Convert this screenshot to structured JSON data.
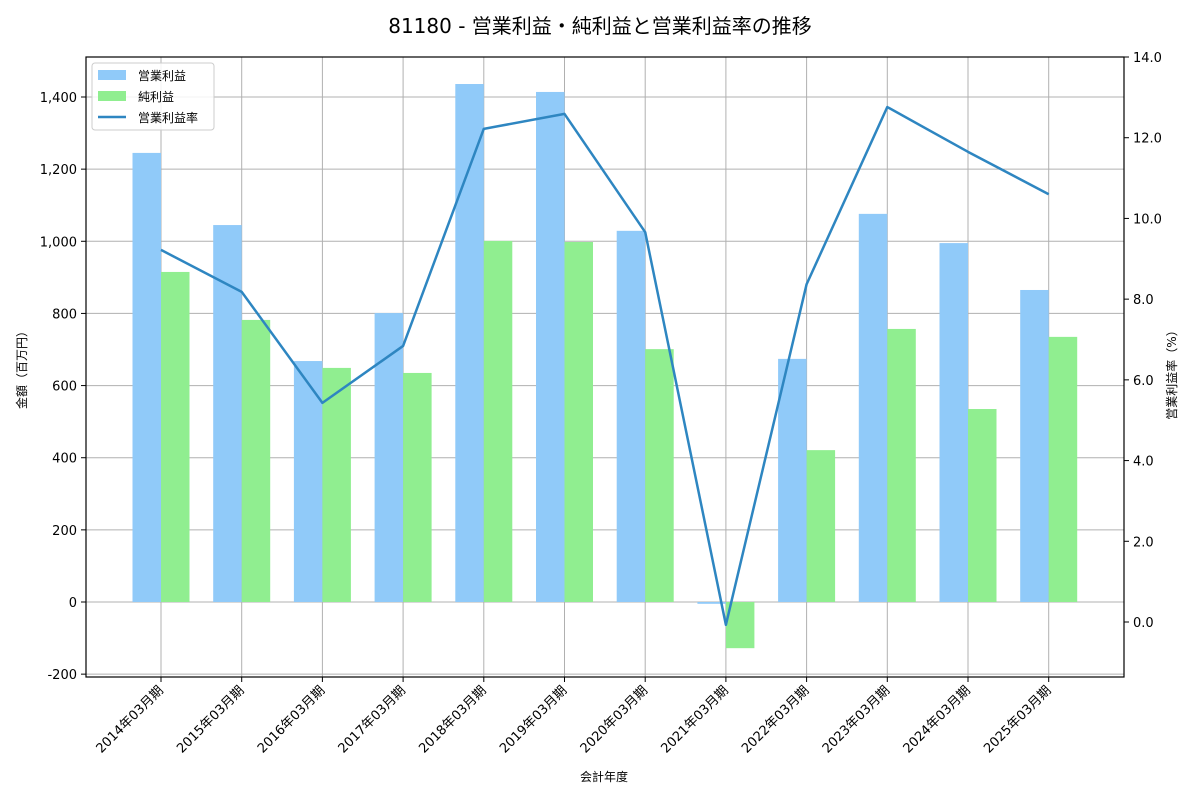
{
  "title": "81180 - 営業利益・純利益と営業利益率の推移",
  "chart_data": {
    "type": "bar+line",
    "title": "81180 - 営業利益・純利益と営業利益率の推移",
    "xlabel": "会計年度",
    "ylabel": "金額（百万円）",
    "y2label": "営業利益率（%）",
    "categories": [
      "2014年03月期",
      "2015年03月期",
      "2016年03月期",
      "2017年03月期",
      "2018年03月期",
      "2019年03月期",
      "2020年03月期",
      "2021年03月期",
      "2022年03月期",
      "2023年03月期",
      "2024年03月期",
      "2025年03月期"
    ],
    "series": [
      {
        "name": "営業利益",
        "type": "bar",
        "axis": "left",
        "color": "#90caf9",
        "values": [
          1245,
          1045,
          668,
          801,
          1436,
          1414,
          1029,
          -5,
          674,
          1076,
          995,
          865
        ]
      },
      {
        "name": "純利益",
        "type": "bar",
        "axis": "left",
        "color": "#90ee90",
        "values": [
          915,
          782,
          649,
          635,
          1001,
          998,
          701,
          -128,
          421,
          757,
          535,
          735
        ]
      },
      {
        "name": "営業利益率",
        "type": "line",
        "axis": "right",
        "color": "#2e86c1",
        "values": [
          9.22,
          8.18,
          5.43,
          6.84,
          12.22,
          12.59,
          9.66,
          -0.07,
          8.37,
          12.76,
          11.65,
          10.6
        ]
      }
    ],
    "ylim": [
      -210,
      1510
    ],
    "y2lim": [
      -1.4,
      14.0
    ],
    "yticks": [
      -200,
      0,
      200,
      400,
      600,
      800,
      1000,
      1200,
      1400
    ],
    "ytick_labels": [
      "-200",
      "0",
      "200",
      "400",
      "600",
      "800",
      "1,000",
      "1,200",
      "1,400"
    ],
    "y2ticks": [
      0,
      2,
      4,
      6,
      8,
      10,
      12,
      14
    ],
    "y2tick_labels": [
      "0.0",
      "2.0",
      "4.0",
      "6.0",
      "8.0",
      "10.0",
      "12.0",
      "14.0"
    ],
    "grid": true,
    "legend_position": "upper left"
  }
}
